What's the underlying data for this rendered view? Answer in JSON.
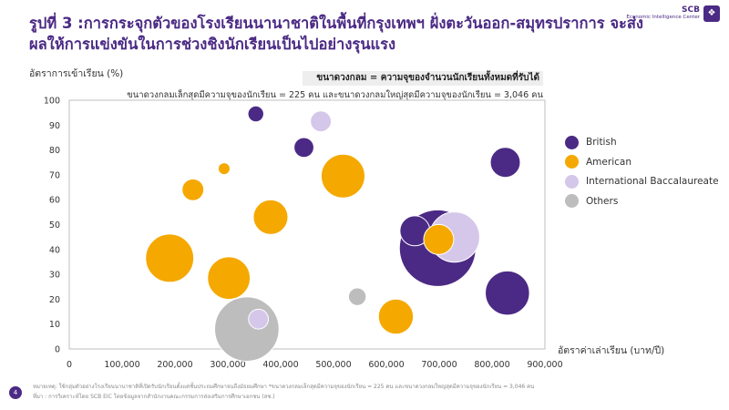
{
  "header": {
    "title": "รูปที่ 3 :การกระจุกตัวของโรงเรียนนานาชาติในพื้นที่กรุงเทพฯ ฝั่งตะวันออก-สมุทรปราการ จะส่งผลให้การแข่งขันในการช่วงชิงนักเรียนเป็นไปอย่างรุนแรง",
    "logo_text": "SCB",
    "logo_sub": "Economic Intelligence Center"
  },
  "notes": {
    "bubble_size": "ขนาดวงกลม = ความจุของจำนวนนักเรียนทั้งหมดที่รับได้",
    "bubble_range": "ขนาดวงกลมเล็กสุดมีความจุของนักเรียน = 225 คน และขนาดวงกลมใหญ่สุดมีความจุของนักเรียน = 3,046 คน"
  },
  "footer": {
    "page_number": "4",
    "line1": "หมายเหตุ: ใช้กลุ่มตัวอย่างโรงเรียนนานาชาติที่เปิดรับนักเรียนตั้งแต่ชั้นประถมศึกษาจนถึงมัธยมศึกษา *ขนาดวงกลมเล็กสุดมีความจุของนักเรียน = 225 คน และขนาดวงกลมใหญ่สุดมีความจุของนักเรียน = 3,046 คน",
    "line2": "ที่มา : การวิเคราะห์โดย SCB EIC โดยข้อมูลจากสำนักงานคณะกรรมการส่งเสริมการศึกษาเอกชน (สช.)"
  },
  "chart_data": {
    "type": "bubble",
    "title": "",
    "xlabel": "อัตราค่าเล่าเรียน (บาท/ปี)",
    "ylabel": "อัตราการเข้าเรียน (%)",
    "xlim": [
      0,
      900000
    ],
    "ylim": [
      0,
      100
    ],
    "x_ticks": [
      0,
      100000,
      200000,
      300000,
      400000,
      500000,
      600000,
      700000,
      800000,
      900000
    ],
    "x_tick_labels": [
      "0",
      "100,000",
      "200,000",
      "300,000",
      "400,000",
      "500,000",
      "600,000",
      "700,000",
      "800,000",
      "900,000"
    ],
    "y_ticks": [
      0,
      10,
      20,
      30,
      40,
      50,
      60,
      70,
      80,
      90,
      100
    ],
    "y_tick_labels": [
      "0",
      "10",
      "20",
      "30",
      "40",
      "50",
      "60",
      "70",
      "80",
      "90",
      "100"
    ],
    "size_range": [
      225,
      3046
    ],
    "grid": false,
    "legend_position": "right",
    "series": [
      {
        "name": "British",
        "color": "#4b2a85",
        "points": [
          {
            "x": 353000,
            "y": 94.5,
            "size": 280
          },
          {
            "x": 444000,
            "y": 81,
            "size": 350
          },
          {
            "x": 654000,
            "y": 47.5,
            "size": 600
          },
          {
            "x": 697000,
            "y": 40.5,
            "size": 3046
          },
          {
            "x": 825000,
            "y": 75,
            "size": 600
          },
          {
            "x": 829000,
            "y": 22.5,
            "size": 1120
          }
        ]
      },
      {
        "name": "American",
        "color": "#f5a800",
        "points": [
          {
            "x": 293000,
            "y": 72.5,
            "size": 225
          },
          {
            "x": 234000,
            "y": 64,
            "size": 390
          },
          {
            "x": 381000,
            "y": 53,
            "size": 750
          },
          {
            "x": 518000,
            "y": 69.5,
            "size": 1100
          },
          {
            "x": 190000,
            "y": 36.5,
            "size": 1300
          },
          {
            "x": 302000,
            "y": 28.5,
            "size": 1050
          },
          {
            "x": 618000,
            "y": 13,
            "size": 760
          },
          {
            "x": 699000,
            "y": 44,
            "size": 600
          }
        ]
      },
      {
        "name": "International Baccalaureate",
        "color": "#d5c7ea",
        "points": [
          {
            "x": 476000,
            "y": 91.5,
            "size": 370
          },
          {
            "x": 729000,
            "y": 45,
            "size": 1400
          },
          {
            "x": 358000,
            "y": 12,
            "size": 350
          }
        ]
      },
      {
        "name": "Others",
        "color": "#bdbdbd",
        "points": [
          {
            "x": 336000,
            "y": 8,
            "size": 2200
          },
          {
            "x": 545000,
            "y": 21,
            "size": 310
          }
        ]
      }
    ]
  }
}
